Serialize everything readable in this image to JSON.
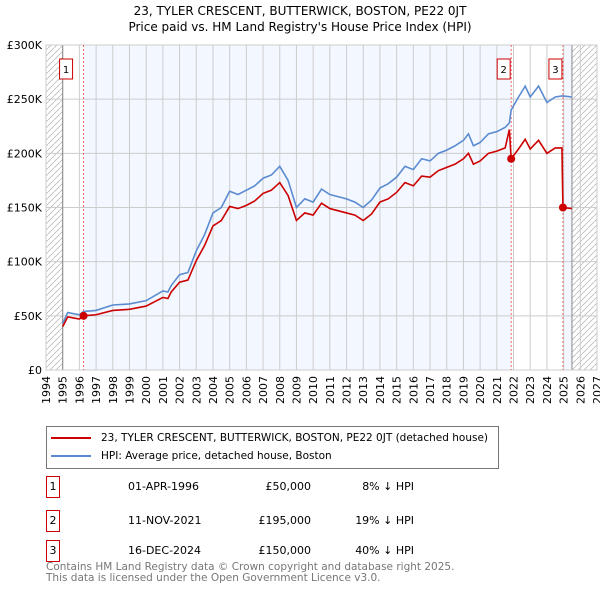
{
  "chart_data": {
    "type": "line",
    "title": "23, TYLER CRESCENT, BUTTERWICK, BOSTON, PE22 0JT",
    "subtitle": "Price paid vs. HM Land Registry's House Price Index (HPI)",
    "xlim": [
      1994,
      2027
    ],
    "ylim": [
      0,
      300000
    ],
    "x_ticks": [
      "1994",
      "1995",
      "1996",
      "1997",
      "1998",
      "1999",
      "2000",
      "2001",
      "2002",
      "2003",
      "2004",
      "2005",
      "2006",
      "2007",
      "2008",
      "2009",
      "2010",
      "2011",
      "2012",
      "2013",
      "2014",
      "2015",
      "2016",
      "2017",
      "2018",
      "2019",
      "2020",
      "2021",
      "2022",
      "2023",
      "2024",
      "2025",
      "2026",
      "2027"
    ],
    "y_ticks": [
      {
        "v": 0,
        "label": "£0"
      },
      {
        "v": 50000,
        "label": "£50K"
      },
      {
        "v": 100000,
        "label": "£100K"
      },
      {
        "v": 150000,
        "label": "£150K"
      },
      {
        "v": 200000,
        "label": "£200K"
      },
      {
        "v": 250000,
        "label": "£250K"
      },
      {
        "v": 300000,
        "label": "£300K"
      }
    ],
    "grid": true,
    "data_range": [
      1995,
      2025.5
    ],
    "series": [
      {
        "name": "23, TYLER CRESCENT, BUTTERWICK, BOSTON, PE22 0JT (detached house)",
        "color": "#cc0000",
        "x": [
          1995.0,
          1995.3,
          1996,
          1996.25,
          1997,
          1998,
          1999,
          2000,
          2001,
          2001.3,
          2001.5,
          2002,
          2002.5,
          2003,
          2003.5,
          2004,
          2004.5,
          2005,
          2005.5,
          2006,
          2006.5,
          2007,
          2007.5,
          2008,
          2008.5,
          2009,
          2009.5,
          2010,
          2010.5,
          2011,
          2012,
          2012.5,
          2013,
          2013.5,
          2014,
          2014.5,
          2015,
          2015.5,
          2016,
          2016.5,
          2017,
          2017.5,
          2018,
          2018.5,
          2019,
          2019.3,
          2019.6,
          2020,
          2020.5,
          2021,
          2021.5,
          2021.75,
          2021.86,
          2022.3,
          2022.7,
          2023,
          2023.5,
          2024,
          2024.5,
          2024.9,
          2024.96,
          2025.5
        ],
        "y": [
          40000,
          49000,
          47000,
          50000,
          51000,
          55000,
          56000,
          59000,
          67000,
          66000,
          72000,
          81000,
          83000,
          101000,
          115000,
          133000,
          138000,
          151000,
          149000,
          152000,
          156000,
          163000,
          166000,
          173000,
          161000,
          138000,
          145000,
          143000,
          154000,
          149000,
          145000,
          143000,
          138000,
          144000,
          155000,
          158000,
          164000,
          173000,
          170000,
          179000,
          178000,
          184000,
          187000,
          190000,
          195000,
          200000,
          190000,
          193000,
          200000,
          202000,
          205000,
          222000,
          195000,
          204000,
          213000,
          204000,
          212000,
          200000,
          205000,
          205000,
          150000,
          149000
        ]
      },
      {
        "name": "HPI: Average price, detached house, Boston",
        "color": "#5b8bd0",
        "x": [
          1995.0,
          1995.3,
          1996,
          1996.25,
          1997,
          1998,
          1999,
          2000,
          2001,
          2001.3,
          2001.5,
          2002,
          2002.5,
          2003,
          2003.5,
          2004,
          2004.5,
          2005,
          2005.5,
          2006,
          2006.5,
          2007,
          2007.5,
          2008,
          2008.5,
          2009,
          2009.5,
          2010,
          2010.5,
          2011,
          2012,
          2012.5,
          2013,
          2013.5,
          2014,
          2014.5,
          2015,
          2015.5,
          2016,
          2016.5,
          2017,
          2017.5,
          2018,
          2018.5,
          2019,
          2019.3,
          2019.6,
          2020,
          2020.5,
          2021,
          2021.5,
          2021.75,
          2021.86,
          2022.3,
          2022.7,
          2023,
          2023.5,
          2024,
          2024.5,
          2024.9,
          2024.96,
          2025.5
        ],
        "y": [
          43000,
          53000,
          51000,
          54000,
          55000,
          60000,
          61000,
          64000,
          73000,
          72000,
          78000,
          88000,
          90000,
          110000,
          125000,
          145000,
          150000,
          165000,
          162000,
          166000,
          170000,
          177000,
          180000,
          188000,
          175000,
          150000,
          158000,
          155000,
          167000,
          162000,
          158000,
          155000,
          150000,
          157000,
          168000,
          172000,
          178000,
          188000,
          185000,
          195000,
          193000,
          200000,
          203000,
          207000,
          212000,
          218000,
          207000,
          210000,
          218000,
          220000,
          224000,
          228000,
          240000,
          252000,
          262000,
          252000,
          262000,
          247000,
          252000,
          253000,
          253000,
          252000
        ]
      }
    ],
    "sales": [
      {
        "id": "1",
        "x": 1996.25,
        "y": 50000,
        "date": "01-APR-1996",
        "price": "£50,000",
        "hpi": "8% ↓ HPI"
      },
      {
        "id": "2",
        "x": 2021.86,
        "y": 195000,
        "date": "11-NOV-2021",
        "price": "£195,000",
        "hpi": "19% ↓ HPI"
      },
      {
        "id": "3",
        "x": 2024.96,
        "y": 150000,
        "date": "16-DEC-2024",
        "price": "£150,000",
        "hpi": "40% ↓ HPI"
      }
    ],
    "legend_position": "below"
  },
  "footer": {
    "line1": "Contains HM Land Registry data © Crown copyright and database right 2025.",
    "line2": "This data is licensed under the Open Government Licence v3.0."
  }
}
